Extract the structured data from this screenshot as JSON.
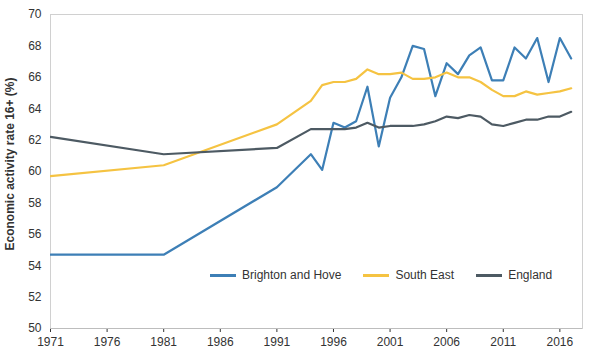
{
  "chart_data": {
    "type": "line",
    "y_label": "Economic activity rate 16+ (%)",
    "x": [
      1971,
      1981,
      1991,
      1994,
      1995,
      1996,
      1997,
      1998,
      1999,
      2000,
      2001,
      2002,
      2003,
      2004,
      2005,
      2006,
      2007,
      2008,
      2009,
      2010,
      2011,
      2012,
      2013,
      2014,
      2015,
      2016,
      2017
    ],
    "series": [
      {
        "name": "Brighton and Hove",
        "color": "#3d7fb6",
        "values": [
          54.7,
          54.7,
          59.0,
          61.1,
          60.1,
          63.1,
          62.8,
          63.2,
          65.4,
          61.6,
          64.7,
          66.0,
          68.0,
          67.8,
          64.8,
          66.9,
          66.2,
          67.4,
          67.9,
          65.8,
          65.8,
          67.9,
          67.2,
          68.5,
          65.7,
          68.5,
          67.2
        ]
      },
      {
        "name": "South East",
        "color": "#f5c342",
        "values": [
          59.7,
          60.4,
          63.0,
          64.5,
          65.5,
          65.7,
          65.7,
          65.9,
          66.5,
          66.2,
          66.2,
          66.3,
          65.9,
          65.9,
          66.0,
          66.3,
          66.0,
          66.0,
          65.7,
          65.2,
          64.8,
          64.8,
          65.1,
          64.9,
          65.0,
          65.1,
          65.3
        ]
      },
      {
        "name": "England",
        "color": "#4d5a63",
        "values": [
          62.2,
          61.1,
          61.5,
          62.7,
          62.7,
          62.7,
          62.7,
          62.8,
          63.1,
          62.8,
          62.9,
          62.9,
          62.9,
          63.0,
          63.2,
          63.5,
          63.4,
          63.6,
          63.5,
          63.0,
          62.9,
          63.1,
          63.3,
          63.3,
          63.5,
          63.5,
          63.8
        ]
      }
    ],
    "xlim": [
      1971,
      2018
    ],
    "xticks": [
      1971,
      1976,
      1981,
      1986,
      1991,
      1996,
      2001,
      2006,
      2011,
      2016
    ],
    "ylim": [
      50,
      70
    ],
    "yticks": [
      50,
      52,
      54,
      56,
      58,
      60,
      62,
      64,
      66,
      68,
      70
    ],
    "grid": false,
    "legend": "bottom"
  }
}
